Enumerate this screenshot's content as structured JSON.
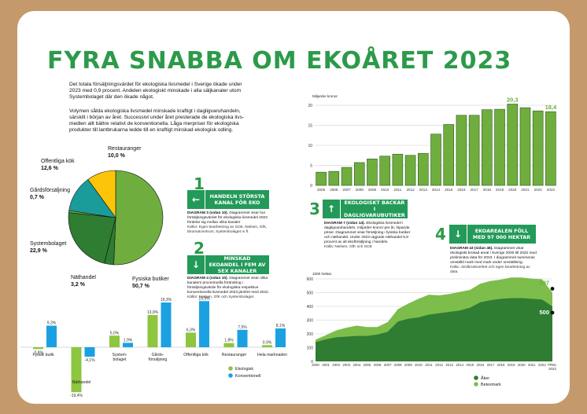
{
  "title": "FYRA SNABBA OM EKOÅRET 2023",
  "intro": {
    "p1": "Det totala försäljningsvärdet för ekologiska livsmedel i Sverige ökade under 2023 med 0,9 procent. Andelen ekologiskt minskade i alla säljkanaler utom Systembolaget där den ökade något.",
    "p2": "Volymen sålda ekologiska livsmedel minskade kraftigt i dagligvaruhandeln, särskilt i början av året. Successivt under året presterade de ekologiska livs­medlen allt bättre relativt de konventionella. Låga merpriser för ekologiska produkter till lantbrukarna ledde till en kraftigt minskad ekologisk odling."
  },
  "colors": {
    "green": "#2c9a4a",
    "banner": "#239a59",
    "light_green": "#8dc63f",
    "blue": "#1ba1e2",
    "pie_green": "#6fae3e",
    "pie_dark": "#2e7d32",
    "pie_teal": "#1a9d9a",
    "pie_yellow": "#fcc50a",
    "bar_green": "#6fae3e",
    "area_dark": "#2e7d32",
    "area_light": "#7dbd4b"
  },
  "sections": [
    {
      "num": "1",
      "banner": "HANDELN STÖRSTA KANAL FÖR EKO",
      "arrow": "←",
      "diagram": "DIAGRAM 3 (sidan 10).",
      "desc": "Diagrammet visar hur försäljningsvärdet för ekologiska livsmedel 2023 fördelar sig mellan olika kanaler",
      "source": "Källor: Egen bearbetning av SCB, Nielsen, GfK, Ekomatcentrum, Systembolaget m fl."
    },
    {
      "num": "2",
      "banner": "MINSKAD EKOANDEL I FEM AV SEX KANALER",
      "arrow": "↓",
      "diagram": "DIAGRAM 4 (sidan 10).",
      "desc": "Diagrammet visar olika kanalers procentuella förändring i försäljningsvärde för ekologiska respektive konventionella livsmedel 2023 jämfört med 2022.",
      "source": "Källor: Nielsen, GfK och Systembolaget."
    },
    {
      "num": "3",
      "banner": "EKOLOGISKT BACKAR I DAGLIGVARUBUTIKER",
      "arrow": "↑",
      "diagram": "DIAGRAM 7 (sidan 14).",
      "desc": "Ekologiska livsmedel i dagligvaruhandeln, miljarder kronor per år, löpande priser. Diagrammet visar försäljning i fysiska butiker och näthandel. Under 2023 utgjorde näthandel 5,9 procent av all ekoförsäljning i handeln.",
      "source": "Källa: Nielsen, GfK och SCB"
    },
    {
      "num": "4",
      "banner": "EKOAREALEN FÖLL MED 97 000 HEKTAR",
      "arrow": "↓",
      "diagram": "DIAGRAM 43 (sidan 46).",
      "desc": "Diagrammet visar ekologiskt brukad areal i Sverige 2000 till 2022 med preliminära data för 2023. I diagrammet summeras omställd mark med mark under omställning.",
      "source": "Källa: Jordbruksverket och egen bearbetning av data."
    }
  ],
  "chart_data": [
    {
      "type": "pie",
      "slices": [
        {
          "label": "Fysiska butiker",
          "value": 50.7,
          "display": "50,7 %",
          "color": "#6fae3e"
        },
        {
          "label": "Näthandel",
          "value": 3.2,
          "display": "3,2 %",
          "color": "#2e7d32"
        },
        {
          "label": "Systembolaget",
          "value": 22.9,
          "display": "22,9 %",
          "color": "#2e7d32"
        },
        {
          "label": "Gårdsförsäljning",
          "value": 0.7,
          "display": "0,7 %",
          "color": "#6fae3e"
        },
        {
          "label": "Offentliga kök",
          "value": 12.6,
          "display": "12,6 %",
          "color": "#1a9d9a"
        },
        {
          "label": "Restauranger",
          "value": 10.0,
          "display": "10,0 %",
          "color": "#fcc50a"
        }
      ]
    },
    {
      "type": "bar",
      "categories": [
        "Fysisk butik",
        "Näthandel",
        "System-bolaget",
        "Gårds-försäljning",
        "Offentliga kök",
        "Restauranger",
        "Hela marknaden"
      ],
      "series": [
        {
          "name": "Ekologisk",
          "values": [
            -0.8,
            -19.4,
            5.0,
            13.9,
            6.3,
            1.8,
            0.9
          ],
          "labels": [
            "-0,8%",
            "-19,4%",
            "5,0%",
            "13,9%",
            "6,3%",
            "1,8%",
            "0,9%"
          ],
          "color": "#8dc63f"
        },
        {
          "name": "Konventionell",
          "values": [
            9.3,
            -4.1,
            1.9,
            19.3,
            19.9,
            7.5,
            8.1
          ],
          "labels": [
            "9,3%",
            "-4,1%",
            "1,9%",
            "19,3%",
            "19,9%",
            "7,5%",
            "8,1%"
          ],
          "color": "#1ba1e2"
        }
      ]
    },
    {
      "type": "bar",
      "ylabel": "Miljarder kronor",
      "ylim": [
        0,
        20
      ],
      "yticks": [
        0,
        5,
        10,
        15,
        20
      ],
      "categories": [
        "2005",
        "2006",
        "2007",
        "2008",
        "2009",
        "2010",
        "2011",
        "2012",
        "2013",
        "2014",
        "2015",
        "2016",
        "2017",
        "2018",
        "2019",
        "2020",
        "2021",
        "2022",
        "2023"
      ],
      "values": [
        3.3,
        3.5,
        4.5,
        5.7,
        6.6,
        7.3,
        7.8,
        7.5,
        8.0,
        12.8,
        15.2,
        17.5,
        17.5,
        18.9,
        19.0,
        20.3,
        19.4,
        18.6,
        18.4
      ],
      "annotations": [
        {
          "index": 15,
          "text": "20,3"
        },
        {
          "index": 18,
          "text": "18,4"
        }
      ]
    },
    {
      "type": "area",
      "ylabel": "1000 hektar",
      "ylim": [
        0,
        600
      ],
      "yticks": [
        0,
        100,
        200,
        300,
        400,
        500,
        600
      ],
      "x": [
        "2000",
        "2001",
        "2002",
        "2003",
        "2004",
        "2005",
        "2006",
        "2007",
        "2008",
        "2009",
        "2010",
        "2011",
        "2012",
        "2013",
        "2014",
        "2015",
        "2016",
        "2017",
        "2018",
        "2019",
        "2020",
        "2021",
        "2022",
        "PREL 2023"
      ],
      "series": [
        {
          "name": "Åker",
          "values": [
            140,
            160,
            175,
            180,
            185,
            185,
            195,
            215,
            290,
            310,
            320,
            340,
            350,
            360,
            370,
            390,
            430,
            445,
            455,
            460,
            460,
            455,
            450,
            400
          ],
          "color": "#2e7d32"
        },
        {
          "name": "Betesmark",
          "values": [
            18,
            30,
            50,
            65,
            75,
            65,
            55,
            70,
            90,
            110,
            135,
            145,
            130,
            130,
            135,
            130,
            135,
            140,
            140,
            150,
            150,
            147,
            147,
            100
          ],
          "color": "#7dbd4b"
        }
      ],
      "annotations": [
        {
          "text": "597"
        },
        {
          "text": "500"
        }
      ]
    }
  ]
}
